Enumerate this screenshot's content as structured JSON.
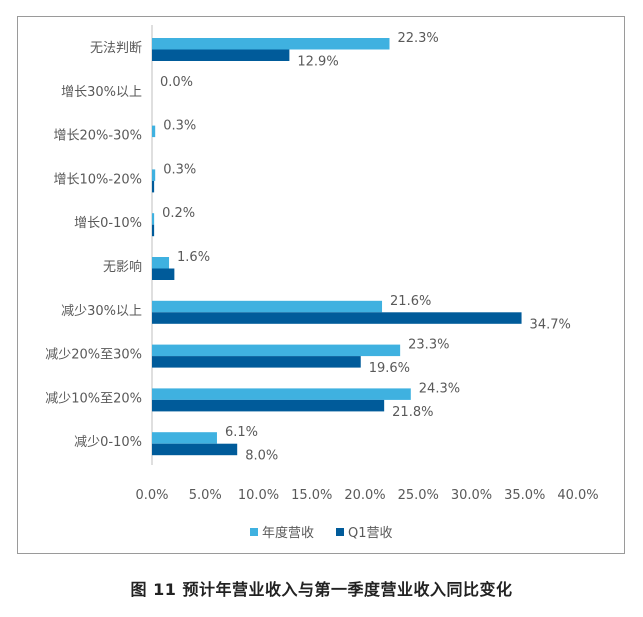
{
  "caption": "图 11   预计年营业收入与第一季度营业收入同比变化",
  "chart_data": {
    "type": "bar",
    "orientation": "horizontal",
    "categories": [
      "无法判断",
      "增长30%以上",
      "增长20%-30%",
      "增长10%-20%",
      "增长0-10%",
      "无影响",
      "减少30%以上",
      "减少20%至30%",
      "减少10%至20%",
      "减少0-10%"
    ],
    "series": [
      {
        "name": "年度营收",
        "color": "#3fb1e0",
        "values": [
          22.3,
          0.0,
          0.3,
          0.3,
          0.2,
          1.6,
          21.6,
          23.3,
          24.3,
          6.1
        ],
        "labels": [
          "22.3%",
          "0.0%",
          "0.3%",
          "0.3%",
          "0.2%",
          "1.6%",
          "21.6%",
          "23.3%",
          "24.3%",
          "6.1%"
        ]
      },
      {
        "name": "Q1营收",
        "color": "#005b9a",
        "values": [
          12.9,
          0.0,
          0.0,
          0.2,
          0.2,
          2.1,
          34.7,
          19.6,
          21.8,
          8.0
        ],
        "labels": [
          "12.9%",
          "",
          "",
          "",
          "",
          "",
          "34.7%",
          "19.6%",
          "21.8%",
          "8.0%"
        ]
      }
    ],
    "xlim": [
      0,
      40
    ],
    "xticks": [
      "0.0%",
      "5.0%",
      "10.0%",
      "15.0%",
      "20.0%",
      "25.0%",
      "30.0%",
      "35.0%",
      "40.0%"
    ],
    "grid": false,
    "legend": "bottom"
  }
}
